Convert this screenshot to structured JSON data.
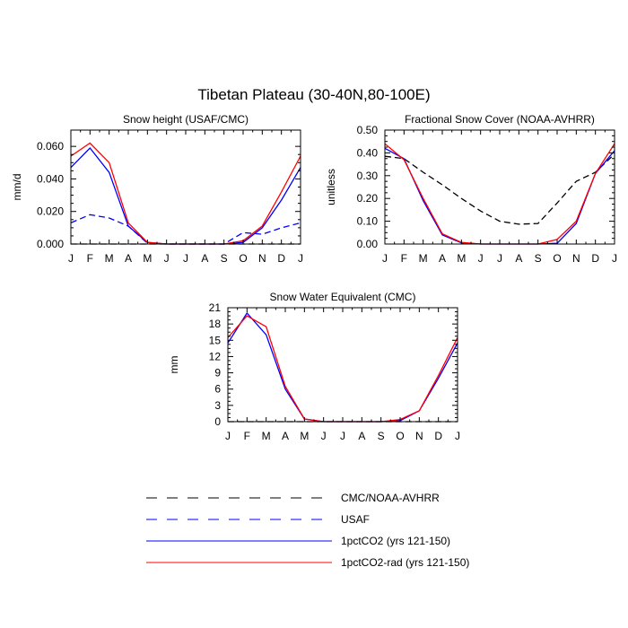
{
  "figure_title": "Tibetan Plateau (30-40N,80-100E)",
  "months": [
    "J",
    "F",
    "M",
    "A",
    "M",
    "J",
    "J",
    "A",
    "S",
    "O",
    "N",
    "D",
    "J"
  ],
  "legend": [
    {
      "label": "CMC/NOAA-AVHRR",
      "color": "#000000",
      "dash": true
    },
    {
      "label": "USAF",
      "color": "#0000ff",
      "dash": true
    },
    {
      "label": "1pctCO2 (yrs 121-150)",
      "color": "#0000ff",
      "dash": false
    },
    {
      "label": "1pctCO2-rad (yrs 121-150)",
      "color": "#ff0000",
      "dash": false
    }
  ],
  "chart_data": [
    {
      "type": "line",
      "title": "Snow height (USAF/CMC)",
      "xlabel": "",
      "ylabel": "mm/d",
      "ylim": [
        0,
        0.07
      ],
      "yticks": [
        "0.000",
        "0.020",
        "0.040",
        "0.060"
      ],
      "x": [
        "J",
        "F",
        "M",
        "A",
        "M",
        "J",
        "J",
        "A",
        "S",
        "O",
        "N",
        "D",
        "J"
      ],
      "series": [
        {
          "name": "CMC/NOAA-AVHRR",
          "color": "#000000",
          "dash": true,
          "values": [
            0,
            0,
            0,
            0,
            0,
            0,
            0,
            0,
            0,
            0,
            0,
            0,
            0
          ]
        },
        {
          "name": "USAF",
          "color": "#0000ff",
          "dash": true,
          "values": [
            0.013,
            0.018,
            0.016,
            0.011,
            0.0005,
            0,
            0,
            0,
            0,
            0.007,
            0.006,
            0.01,
            0.013
          ]
        },
        {
          "name": "1pctCO2 (yrs 121-150)",
          "color": "#0000ff",
          "dash": false,
          "values": [
            0.047,
            0.059,
            0.044,
            0.011,
            0.001,
            0,
            0,
            0,
            0,
            0.001,
            0.01,
            0.027,
            0.047
          ]
        },
        {
          "name": "1pctCO2-rad (yrs 121-150)",
          "color": "#ff0000",
          "dash": false,
          "values": [
            0.054,
            0.062,
            0.05,
            0.013,
            0.001,
            0,
            0,
            0,
            0,
            0.002,
            0.011,
            0.032,
            0.054
          ]
        }
      ]
    },
    {
      "type": "line",
      "title": "Fractional Snow Cover (NOAA-AVHRR)",
      "xlabel": "",
      "ylabel": "unitless",
      "ylim": [
        0,
        0.5
      ],
      "yticks": [
        "0.00",
        "0.10",
        "0.20",
        "0.30",
        "0.40",
        "0.50"
      ],
      "x": [
        "J",
        "F",
        "M",
        "A",
        "M",
        "J",
        "J",
        "A",
        "S",
        "O",
        "N",
        "D",
        "J"
      ],
      "series": [
        {
          "name": "CMC/NOAA-AVHRR",
          "color": "#000000",
          "dash": true,
          "values": [
            0.385,
            0.375,
            0.315,
            0.26,
            0.2,
            0.145,
            0.1,
            0.087,
            0.09,
            0.18,
            0.275,
            0.315,
            0.395
          ]
        },
        {
          "name": "1pctCO2 (yrs 121-150)",
          "color": "#0000ff",
          "dash": false,
          "values": [
            0.42,
            0.375,
            0.19,
            0.04,
            0.005,
            0,
            0,
            0,
            0,
            0.003,
            0.09,
            0.31,
            0.41
          ]
        },
        {
          "name": "1pctCO2-rad (yrs 121-150)",
          "color": "#ff0000",
          "dash": false,
          "values": [
            0.44,
            0.37,
            0.2,
            0.045,
            0.007,
            0,
            0,
            0,
            0,
            0.02,
            0.1,
            0.31,
            0.44
          ]
        }
      ]
    },
    {
      "type": "line",
      "title": "Snow Water Equivalent (CMC)",
      "xlabel": "",
      "ylabel": "mm",
      "ylim": [
        0,
        21
      ],
      "yticks": [
        "0",
        "3",
        "6",
        "9",
        "12",
        "15",
        "18",
        "21"
      ],
      "x": [
        "J",
        "F",
        "M",
        "A",
        "M",
        "J",
        "J",
        "A",
        "S",
        "O",
        "N",
        "D",
        "J"
      ],
      "series": [
        {
          "name": "CMC/NOAA-AVHRR",
          "color": "#000000",
          "dash": true,
          "values": [
            0,
            0,
            0,
            0,
            0,
            0,
            0,
            0,
            0,
            0,
            0,
            0,
            0
          ]
        },
        {
          "name": "1pctCO2 (yrs 121-150)",
          "color": "#0000ff",
          "dash": false,
          "values": [
            14.5,
            20,
            16,
            6,
            0.5,
            0,
            0,
            0,
            0,
            0.2,
            2,
            8,
            14.5
          ]
        },
        {
          "name": "1pctCO2-rad (yrs 121-150)",
          "color": "#ff0000",
          "dash": false,
          "values": [
            15.5,
            19.5,
            17.5,
            6.5,
            0.5,
            0,
            0,
            0,
            0,
            0.4,
            2,
            8.5,
            15.5
          ]
        }
      ]
    }
  ]
}
